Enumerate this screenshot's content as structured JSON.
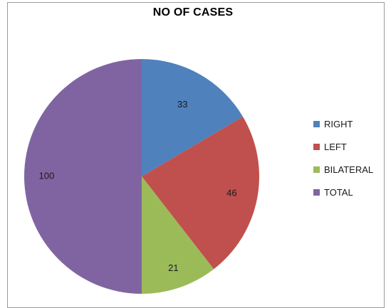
{
  "chart_data": {
    "type": "pie",
    "title": "NO OF CASES",
    "categories": [
      "RIGHT",
      "LEFT",
      "BILATERAL",
      "TOTAL"
    ],
    "values": [
      33,
      46,
      21,
      100
    ],
    "colors": [
      "#4f81bd",
      "#c0504d",
      "#9bbb59",
      "#8064a2"
    ],
    "labels": [
      "33",
      "46",
      "21",
      "100"
    ],
    "legend": "right"
  }
}
